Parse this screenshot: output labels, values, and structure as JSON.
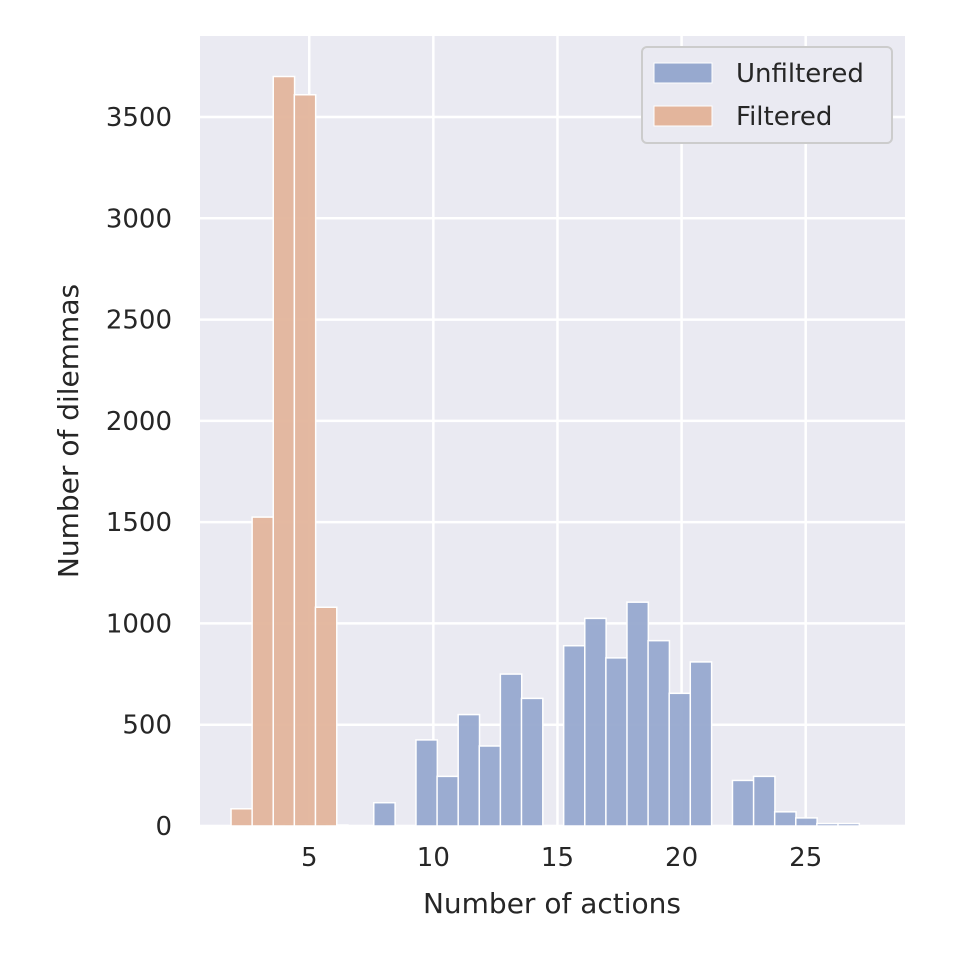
{
  "chart_data": {
    "type": "bar",
    "xlabel": "Number of actions",
    "ylabel": "Number of dilemmas",
    "xlim": [
      0.6,
      29.0
    ],
    "ylim": [
      0,
      3900
    ],
    "x_ticks": [
      5,
      10,
      15,
      20,
      25
    ],
    "y_ticks": [
      0,
      500,
      1000,
      1500,
      2000,
      2500,
      3000,
      3500
    ],
    "grid": true,
    "legend_position": "top-right",
    "bin_width": 0.86,
    "series": [
      {
        "name": "Unfiltered",
        "color": "#97a9cf",
        "bins": [
          {
            "x": 4.0,
            "y": 10
          },
          {
            "x": 4.85,
            "y": 10
          },
          {
            "x": 5.7,
            "y": 5
          },
          {
            "x": 7.6,
            "y": 115
          },
          {
            "x": 8.45,
            "y": 0
          },
          {
            "x": 9.3,
            "y": 425
          },
          {
            "x": 10.15,
            "y": 245
          },
          {
            "x": 11.0,
            "y": 550
          },
          {
            "x": 11.85,
            "y": 395
          },
          {
            "x": 12.7,
            "y": 750
          },
          {
            "x": 13.55,
            "y": 630
          },
          {
            "x": 15.25,
            "y": 890
          },
          {
            "x": 16.1,
            "y": 1025
          },
          {
            "x": 16.95,
            "y": 830
          },
          {
            "x": 17.8,
            "y": 1105
          },
          {
            "x": 18.65,
            "y": 915
          },
          {
            "x": 19.5,
            "y": 655
          },
          {
            "x": 20.35,
            "y": 810
          },
          {
            "x": 22.05,
            "y": 225
          },
          {
            "x": 22.9,
            "y": 245
          },
          {
            "x": 23.75,
            "y": 70
          },
          {
            "x": 24.6,
            "y": 40
          },
          {
            "x": 25.45,
            "y": 12
          },
          {
            "x": 26.3,
            "y": 12
          }
        ]
      },
      {
        "name": "Filtered",
        "color": "#e3b59c",
        "bins": [
          {
            "x": 1.85,
            "y": 85
          },
          {
            "x": 2.7,
            "y": 1525
          },
          {
            "x": 3.55,
            "y": 3700
          },
          {
            "x": 4.4,
            "y": 3610
          },
          {
            "x": 5.25,
            "y": 1080
          }
        ]
      }
    ]
  }
}
